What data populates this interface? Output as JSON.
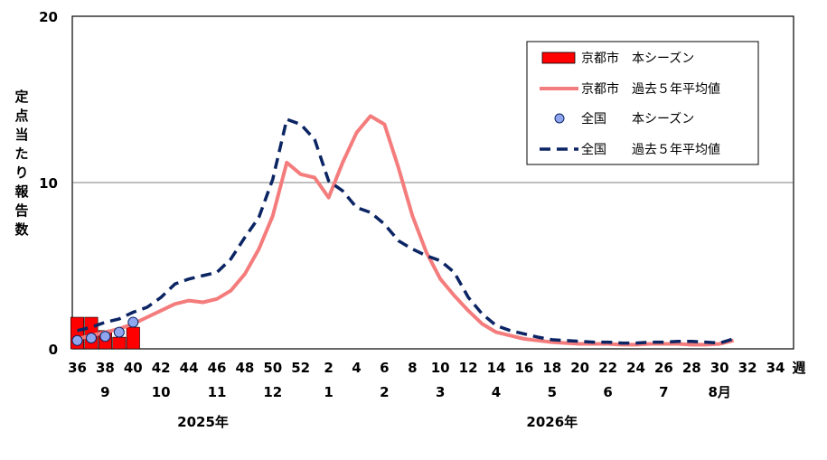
{
  "chart_data": {
    "type": "bar",
    "ylabel": "定点当たり報告数",
    "ylim": [
      0,
      20
    ],
    "y_ticks": [
      "0",
      "10",
      "20"
    ],
    "gridline_at": 10,
    "x_unit_label": "週",
    "week_labels": [
      "36",
      "38",
      "40",
      "42",
      "44",
      "46",
      "48",
      "50",
      "52",
      "2",
      "4",
      "6",
      "8",
      "10",
      "12",
      "14",
      "16",
      "18",
      "20",
      "22",
      "24",
      "26",
      "28",
      "30",
      "32",
      "34"
    ],
    "months": [
      {
        "label": "9",
        "at": 38
      },
      {
        "label": "10",
        "at": 42
      },
      {
        "label": "11",
        "at": 46
      },
      {
        "label": "12",
        "at": 50
      },
      {
        "label": "1",
        "at": 54
      },
      {
        "label": "2",
        "at": 58
      },
      {
        "label": "3",
        "at": 62
      },
      {
        "label": "4",
        "at": 66
      },
      {
        "label": "5",
        "at": 70
      },
      {
        "label": "6",
        "at": 74
      },
      {
        "label": "7",
        "at": 78
      },
      {
        "label": "8月",
        "at": 82
      }
    ],
    "years": [
      {
        "label": "2025年",
        "at": 45
      },
      {
        "label": "2026年",
        "at": 70
      }
    ],
    "legend": [
      {
        "label": "京都市　本シーズン",
        "kind": "bar"
      },
      {
        "label": "京都市　過去５年平均値",
        "kind": "line"
      },
      {
        "label": "全国　　本シーズン",
        "kind": "point"
      },
      {
        "label": "全国　　過去５年平均値",
        "kind": "dash"
      }
    ],
    "x_week_index_start": 36,
    "series": [
      {
        "name": "京都市　本シーズン",
        "type": "bar",
        "color": "#ff0000",
        "x": [
          36,
          37,
          38,
          39,
          40
        ],
        "values": [
          1.9,
          1.9,
          1.1,
          0.7,
          1.3
        ]
      },
      {
        "name": "京都市　過去５年平均値",
        "type": "line",
        "color": "#f47c7c",
        "x": [
          36,
          37,
          38,
          39,
          40,
          41,
          42,
          43,
          44,
          45,
          46,
          47,
          48,
          49,
          50,
          51,
          52,
          53,
          54,
          55,
          56,
          57,
          58,
          59,
          60,
          61,
          62,
          63,
          64,
          65,
          66,
          67,
          68,
          69,
          70,
          71,
          72,
          73,
          74,
          75,
          76,
          77,
          78,
          79,
          80,
          81,
          82,
          83
        ],
        "values": [
          0.6,
          0.8,
          1.0,
          1.2,
          1.5,
          1.9,
          2.3,
          2.7,
          2.9,
          2.8,
          3.0,
          3.5,
          4.5,
          6.0,
          8.0,
          11.2,
          10.5,
          10.3,
          9.1,
          11.2,
          13.0,
          14.0,
          13.5,
          10.9,
          8.0,
          5.8,
          4.2,
          3.2,
          2.3,
          1.5,
          1.0,
          0.8,
          0.6,
          0.5,
          0.4,
          0.35,
          0.3,
          0.3,
          0.3,
          0.25,
          0.25,
          0.3,
          0.3,
          0.3,
          0.25,
          0.25,
          0.3,
          0.5
        ]
      },
      {
        "name": "全国　　本シーズン",
        "type": "scatter",
        "color": "#8fa6ee",
        "x": [
          36,
          37,
          38,
          39,
          40
        ],
        "values": [
          0.5,
          0.65,
          0.75,
          1.0,
          1.6
        ]
      },
      {
        "name": "全国　　過去５年平均値",
        "type": "line",
        "color": "#0b2463",
        "dash": true,
        "x": [
          36,
          37,
          38,
          39,
          40,
          41,
          42,
          43,
          44,
          45,
          46,
          47,
          48,
          49,
          50,
          51,
          52,
          53,
          54,
          55,
          56,
          57,
          58,
          59,
          60,
          61,
          62,
          63,
          64,
          65,
          66,
          67,
          68,
          69,
          70,
          71,
          72,
          73,
          74,
          75,
          76,
          77,
          78,
          79,
          80,
          81,
          82,
          83
        ],
        "values": [
          1.1,
          1.3,
          1.6,
          1.8,
          2.2,
          2.5,
          3.1,
          3.9,
          4.2,
          4.4,
          4.6,
          5.4,
          6.7,
          7.9,
          10.2,
          13.8,
          13.5,
          12.6,
          10.1,
          9.5,
          8.5,
          8.2,
          7.5,
          6.5,
          6.0,
          5.6,
          5.3,
          4.6,
          3.1,
          2.1,
          1.4,
          1.1,
          0.9,
          0.7,
          0.55,
          0.5,
          0.45,
          0.4,
          0.4,
          0.35,
          0.35,
          0.4,
          0.4,
          0.45,
          0.45,
          0.4,
          0.35,
          0.6
        ]
      }
    ]
  }
}
